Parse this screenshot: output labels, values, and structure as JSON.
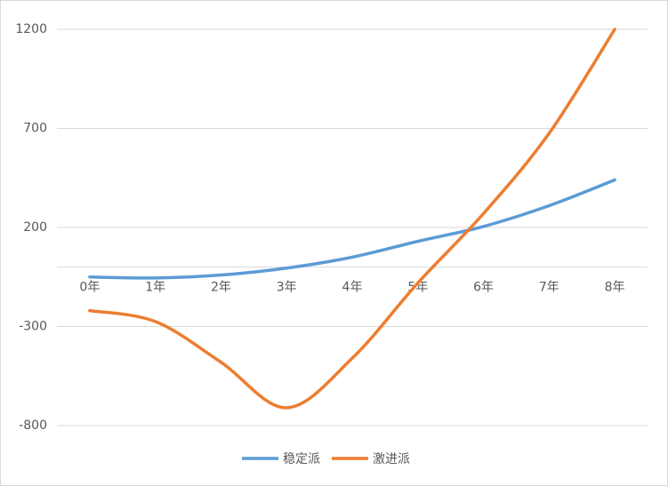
{
  "chart_data": {
    "type": "line",
    "categories": [
      "0年",
      "1年",
      "2年",
      "3年",
      "4年",
      "5年",
      "6年",
      "7年",
      "8年"
    ],
    "series": [
      {
        "name": "稳定派",
        "color": "#5b9bd5",
        "values": [
          -50,
          -55,
          -40,
          -5,
          50,
          130,
          205,
          310,
          440
        ]
      },
      {
        "name": "激进派",
        "color": "#ed7d31",
        "values": [
          -220,
          -275,
          -480,
          -710,
          -460,
          -80,
          270,
          675,
          1200
        ]
      }
    ],
    "ylim": [
      -800,
      1200
    ],
    "yticks": [
      -800,
      -300,
      200,
      700,
      1200
    ],
    "grid": true,
    "smooth": true,
    "legend": "bottom"
  }
}
